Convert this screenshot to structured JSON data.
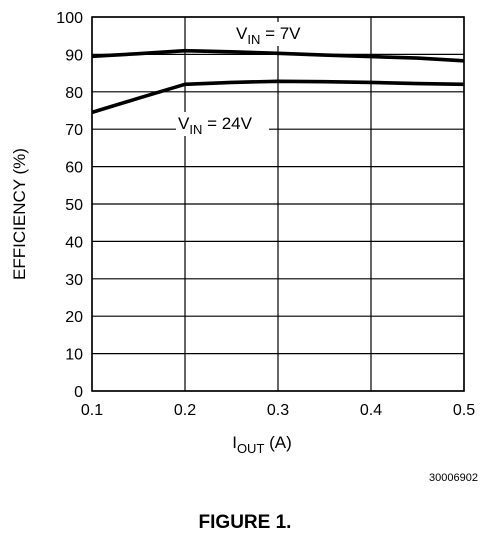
{
  "chart_data": {
    "type": "line",
    "title": "",
    "xlabel_main": "I",
    "xlabel_sub": "OUT",
    "xlabel_tail": " (A)",
    "ylabel": "EFFICIENCY (%)",
    "xlim": [
      0.1,
      0.5
    ],
    "ylim": [
      0,
      100
    ],
    "x_ticks": [
      "0.1",
      "0.2",
      "0.3",
      "0.4",
      "0.5"
    ],
    "y_ticks": [
      "0",
      "10",
      "20",
      "30",
      "40",
      "50",
      "60",
      "70",
      "80",
      "90",
      "100"
    ],
    "grid": true,
    "series": [
      {
        "label_main": "V",
        "label_sub": "IN",
        "label_tail": " = 7V",
        "x": [
          0.1,
          0.15,
          0.2,
          0.25,
          0.3,
          0.35,
          0.4,
          0.45,
          0.5
        ],
        "values": [
          89.5,
          90.2,
          91.0,
          90.7,
          90.3,
          89.8,
          89.4,
          89.0,
          88.3
        ]
      },
      {
        "label_main": "V",
        "label_sub": "IN",
        "label_tail": " = 24V",
        "x": [
          0.1,
          0.15,
          0.2,
          0.25,
          0.3,
          0.35,
          0.4,
          0.45,
          0.5
        ],
        "values": [
          74.5,
          78.3,
          82.0,
          82.5,
          82.8,
          82.7,
          82.5,
          82.2,
          82.0
        ]
      }
    ]
  },
  "figure_code": "30006902",
  "caption": "FIGURE 1."
}
